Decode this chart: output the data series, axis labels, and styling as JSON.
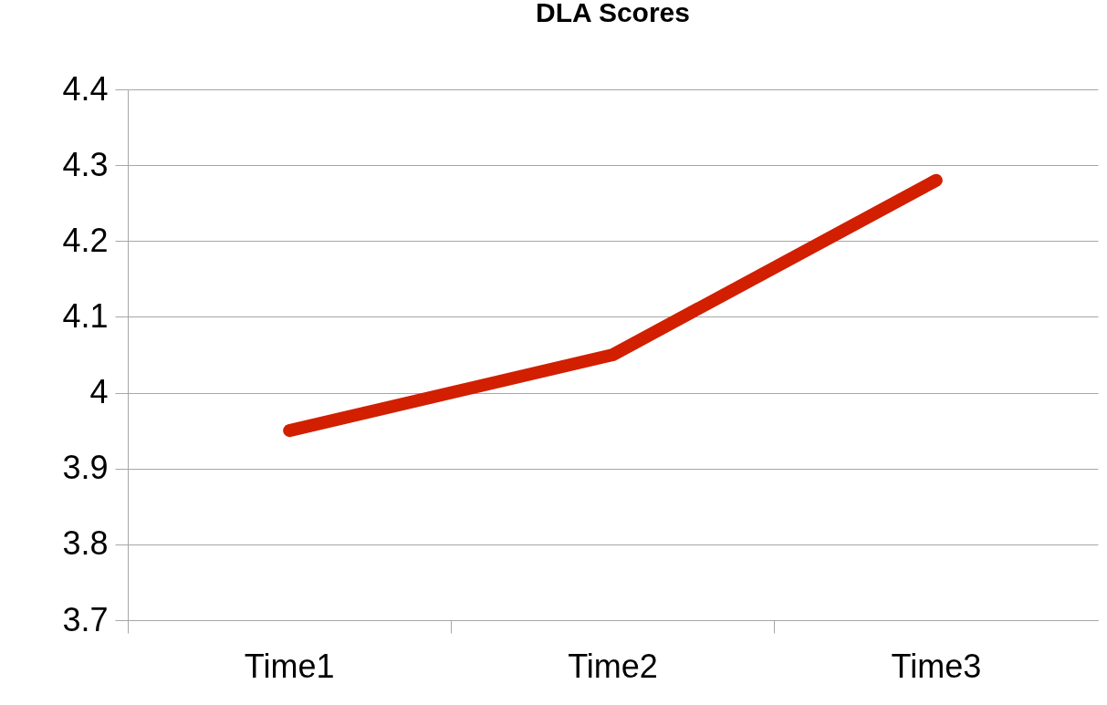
{
  "chart_data": {
    "type": "line",
    "title": "DLA Scores",
    "categories": [
      "Time1",
      "Time2",
      "Time3"
    ],
    "series": [
      {
        "color": "#d11f00",
        "values": [
          3.95,
          4.05,
          4.28
        ]
      }
    ],
    "ylim": [
      3.7,
      4.4
    ],
    "yticks": [
      3.7,
      3.8,
      3.9,
      4,
      4.1,
      4.2,
      4.3,
      4.4
    ],
    "grid": "y",
    "marker": "none",
    "line_style": "solid"
  }
}
